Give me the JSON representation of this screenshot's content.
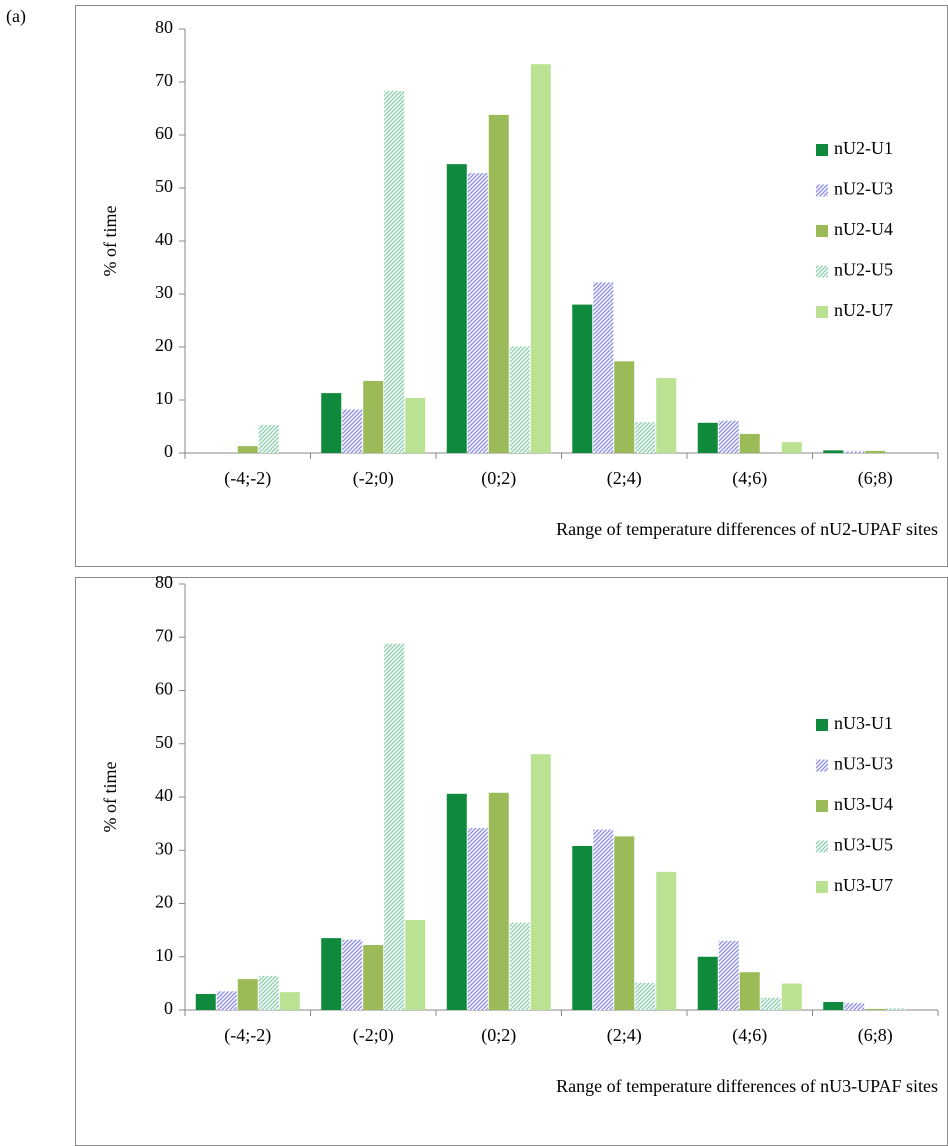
{
  "panel_label": "(a)",
  "chart_data": [
    {
      "type": "bar",
      "ylabel": "% of time",
      "xlabel": "Range of temperature differences of nU2-UPAF sites",
      "categories": [
        "(-4;-2)",
        "(-2;0)",
        "(0;2)",
        "(2;4)",
        "(4;6)",
        "(6;8)"
      ],
      "ylim": [
        0,
        80
      ],
      "yticks": [
        0,
        10,
        20,
        30,
        40,
        50,
        60,
        70,
        80
      ],
      "legend": "right",
      "series": [
        {
          "name": "nU2-U1",
          "color": "#0f8a3c",
          "hatch": "solid",
          "values": [
            0,
            11.3,
            54.5,
            28.0,
            5.7,
            0.5
          ]
        },
        {
          "name": "nU2-U3",
          "color": "#8f8fe8",
          "hatch": "diagonal",
          "values": [
            0,
            8.2,
            52.8,
            32.2,
            6.1,
            0.3
          ]
        },
        {
          "name": "nU2-U4",
          "color": "#9bbb59",
          "hatch": "solid",
          "values": [
            1.3,
            13.6,
            63.8,
            17.3,
            3.6,
            0.4
          ]
        },
        {
          "name": "nU2-U5",
          "color": "#8fd0b0",
          "hatch": "diagonal",
          "values": [
            5.3,
            68.3,
            20.1,
            5.8,
            0,
            0
          ]
        },
        {
          "name": "nU2-U7",
          "color": "#92d050",
          "hatch": "horizontal",
          "values": [
            0,
            10.4,
            73.3,
            14.1,
            2.0,
            0
          ]
        }
      ]
    },
    {
      "type": "bar",
      "ylabel": "% of time",
      "xlabel": "Range of temperature differences of nU3-UPAF sites",
      "categories": [
        "(-4;-2)",
        "(-2;0)",
        "(0;2)",
        "(2;4)",
        "(4;6)",
        "(6;8)"
      ],
      "ylim": [
        0,
        80
      ],
      "yticks": [
        0,
        10,
        20,
        30,
        40,
        50,
        60,
        70,
        80
      ],
      "legend": "right",
      "series": [
        {
          "name": "nU3-U1",
          "color": "#0f8a3c",
          "hatch": "solid",
          "values": [
            3.0,
            13.5,
            40.6,
            30.8,
            10.0,
            1.5
          ]
        },
        {
          "name": "nU3-U3",
          "color": "#8f8fe8",
          "hatch": "diagonal",
          "values": [
            3.5,
            13.2,
            34.2,
            33.9,
            13.0,
            1.3
          ]
        },
        {
          "name": "nU3-U4",
          "color": "#9bbb59",
          "hatch": "solid",
          "values": [
            5.8,
            12.2,
            40.8,
            32.6,
            7.1,
            0.2
          ]
        },
        {
          "name": "nU3-U5",
          "color": "#8fd0b0",
          "hatch": "diagonal",
          "values": [
            6.4,
            68.8,
            16.4,
            5.1,
            2.3,
            0.3
          ]
        },
        {
          "name": "nU3-U7",
          "color": "#92d050",
          "hatch": "horizontal",
          "values": [
            3.3,
            16.9,
            48.0,
            26.0,
            5.0,
            0
          ]
        }
      ]
    }
  ]
}
